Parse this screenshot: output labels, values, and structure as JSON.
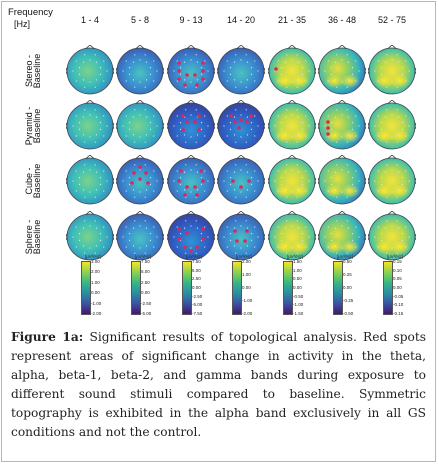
{
  "header": {
    "title": "Frequency",
    "unit": "[Hz]"
  },
  "bands": [
    "1 - 4",
    "5 - 8",
    "9 - 13",
    "14 - 20",
    "21 - 35",
    "36 - 48",
    "52 - 75"
  ],
  "rows": [
    "Stereo -\nBaseline",
    "Pyramid -\nBaseline",
    "Cube -\nBaseline",
    "Sphere -\nBaseline"
  ],
  "colorbars": [
    {
      "unit": "[μV²/Hz]",
      "ticks": [
        "3.00",
        "2.00",
        "1.00",
        "0.00",
        "-1.00",
        "-2.00"
      ]
    },
    {
      "unit": "[μV²/Hz]",
      "ticks": [
        "7.50",
        "5.00",
        "2.50",
        "0.00",
        "-2.50",
        "-5.00"
      ]
    },
    {
      "unit": "[μV²/Hz]",
      "ticks": [
        "7.50",
        "5.00",
        "2.50",
        "0.00",
        "-2.50",
        "-5.00",
        "-7.50"
      ]
    },
    {
      "unit": "[μV²/Hz]",
      "ticks": [
        "2.00",
        "1.00",
        "0.00",
        "-1.00",
        "-2.00"
      ]
    },
    {
      "unit": "[μV²/Hz]",
      "ticks": [
        "1.50",
        "1.00",
        "0.50",
        "0.00",
        "-0.50",
        "-1.00",
        "-1.50"
      ]
    },
    {
      "unit": "[μV²/Hz]",
      "ticks": [
        "0.50",
        "0.25",
        "0.00",
        "-0.25",
        "-0.50"
      ]
    },
    {
      "unit": "[μV²/Hz]",
      "ticks": [
        "0.15",
        "0.10",
        "0.05",
        "0.00",
        "-0.05",
        "-0.10",
        "-0.15"
      ]
    }
  ],
  "caption": {
    "figure_label": "Figure 1a:",
    "text": " Significant results of topological analysis. Red spots represent areas of significant change in activity in the theta, alpha, beta-1, beta-2, and gamma bands during exposure to different sound stimuli compared to baseline. Symmetric topography is exhibited in the alpha band exclusively in all GS conditions and not the control."
  },
  "colors": {
    "red_spot": "#e0245e",
    "cool": "#2f6fc0",
    "warm": "#f2e23a",
    "mid": "#3fbfbf"
  }
}
